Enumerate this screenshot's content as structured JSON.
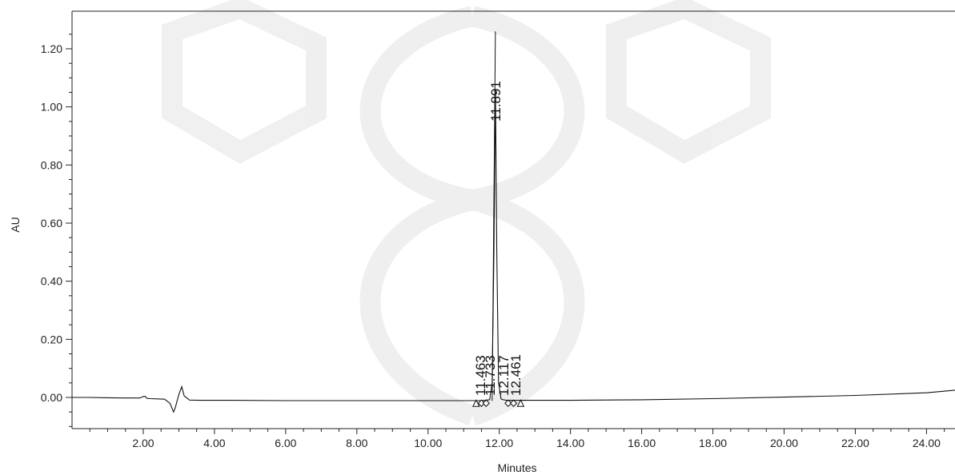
{
  "chart_data": {
    "type": "line",
    "title": "",
    "xlabel": "Minutes",
    "ylabel": "AU",
    "xlim": [
      0,
      24.8
    ],
    "ylim": [
      -0.12,
      1.3
    ],
    "x_ticks": [
      2,
      4,
      6,
      8,
      10,
      12,
      14,
      16,
      18,
      20,
      22,
      24
    ],
    "x_tick_labels": [
      "2.00",
      "4.00",
      "6.00",
      "8.00",
      "10.00",
      "12.00",
      "14.00",
      "16.00",
      "18.00",
      "20.00",
      "22.00",
      "24.00"
    ],
    "y_ticks": [
      0,
      0.2,
      0.4,
      0.6,
      0.8,
      1.0,
      1.2
    ],
    "y_tick_labels": [
      "0.00",
      "0.20",
      "0.40",
      "0.60",
      "0.80",
      "1.00",
      "1.20"
    ],
    "grid": false,
    "series": [
      {
        "x": [
          0,
          0.5,
          1.0,
          1.5,
          1.9,
          2.0,
          2.05,
          2.1,
          2.2,
          2.6,
          2.75,
          2.85,
          2.9,
          3.0,
          3.08,
          3.15,
          3.3,
          3.6,
          4.5,
          6,
          8,
          10,
          11.2,
          11.46,
          11.6,
          11.73,
          11.8,
          11.85,
          11.891,
          11.93,
          11.98,
          12.05,
          12.11,
          12.2,
          12.46,
          13,
          14,
          16,
          18,
          20,
          22,
          24,
          24.8
        ],
        "y": [
          0,
          0,
          -0.001,
          -0.002,
          -0.002,
          0.003,
          0.004,
          -0.003,
          -0.004,
          -0.006,
          -0.02,
          -0.05,
          -0.035,
          0.01,
          0.037,
          0.005,
          -0.009,
          -0.01,
          -0.01,
          -0.011,
          -0.011,
          -0.011,
          -0.011,
          -0.011,
          -0.01,
          -0.008,
          0.05,
          0.5,
          1.06,
          0.5,
          0.05,
          -0.005,
          -0.008,
          -0.01,
          -0.01,
          -0.01,
          -0.01,
          -0.008,
          -0.004,
          0.001,
          0.007,
          0.016,
          0.025
        ]
      }
    ],
    "peak_labels": [
      {
        "text": "11.463",
        "x": 11.463,
        "y": -0.011
      },
      {
        "text": "11.733",
        "x": 11.733,
        "y": -0.008
      },
      {
        "text": "11.891",
        "x": 11.891,
        "y": 1.06
      },
      {
        "text": "12.117",
        "x": 12.117,
        "y": -0.008
      },
      {
        "text": "12.461",
        "x": 12.461,
        "y": -0.01
      }
    ],
    "markers": [
      {
        "shape": "triangle",
        "x": 11.35
      },
      {
        "shape": "diamond",
        "x": 11.5
      },
      {
        "shape": "diamond",
        "x": 11.63
      },
      {
        "shape": "diamond",
        "x": 12.25
      },
      {
        "shape": "diamond",
        "x": 12.4
      },
      {
        "shape": "triangle",
        "x": 12.6
      }
    ],
    "integration_line": {
      "x": [
        11.8,
        11.891
      ],
      "y": [
        -0.012,
        1.26
      ]
    }
  }
}
